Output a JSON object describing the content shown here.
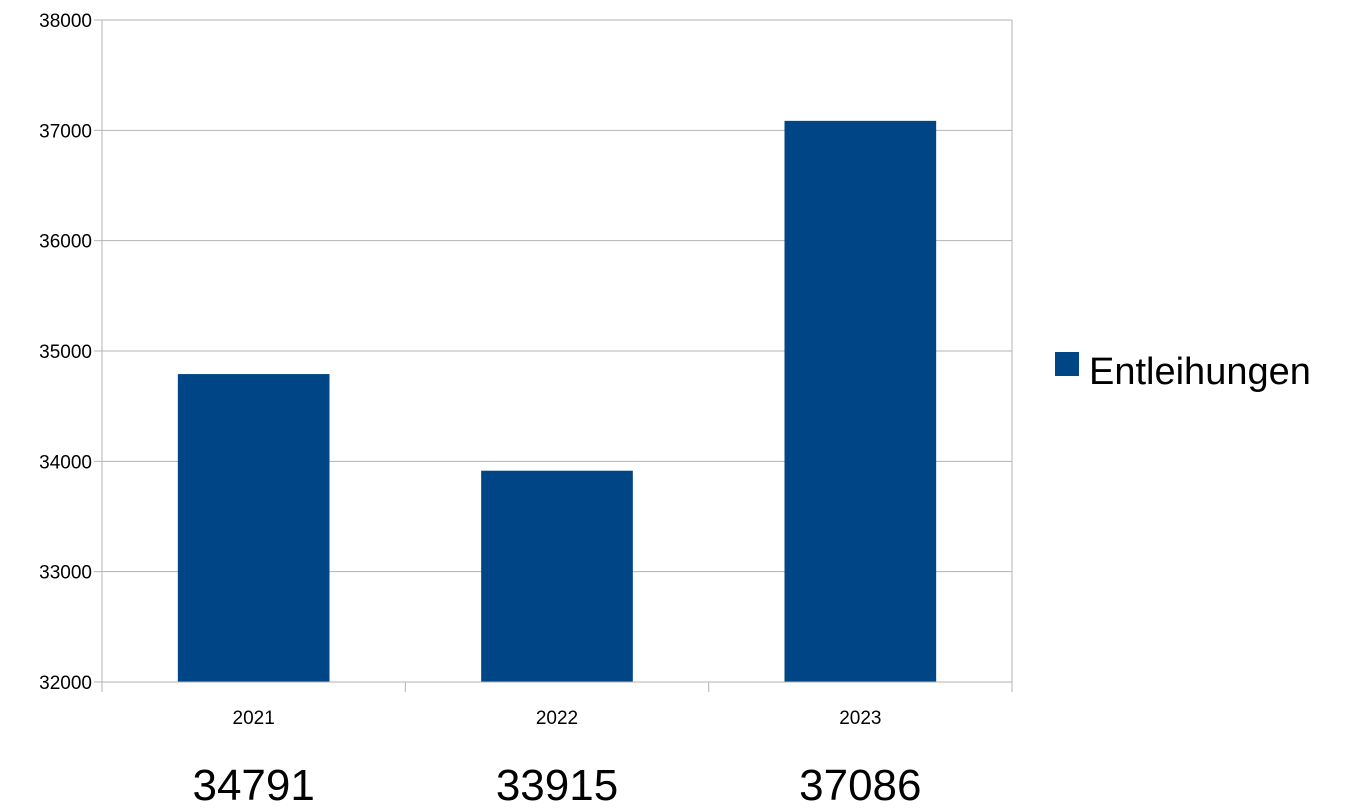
{
  "chart_data": {
    "type": "bar",
    "categories": [
      "2021",
      "2022",
      "2023"
    ],
    "series": [
      {
        "name": "Entleihungen",
        "values": [
          34791,
          33915,
          37086
        ],
        "color": "#004586"
      }
    ],
    "ylim": [
      32000,
      38000
    ],
    "yticks": [
      "32000",
      "33000",
      "34000",
      "35000",
      "36000",
      "37000",
      "38000"
    ],
    "grid": true,
    "legend": "right",
    "value_labels": [
      "34791",
      "33915",
      "37086"
    ]
  }
}
